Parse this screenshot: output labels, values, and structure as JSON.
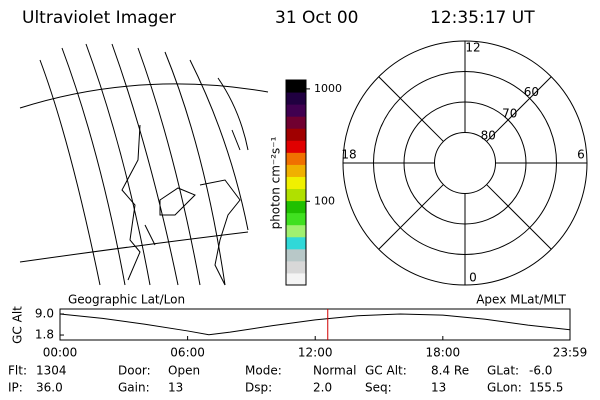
{
  "header": {
    "title": "Ultraviolet Imager",
    "date": "31 Oct 00",
    "time": "12:35:17 UT"
  },
  "colorbar": {
    "label": "photon cm⁻²s⁻¹",
    "log": true,
    "lim": [
      18,
      1200
    ],
    "ticks": [
      1000,
      100
    ],
    "colors": [
      "#f4f4f4",
      "#d8d8d8",
      "#b8c8c8",
      "#30d8d8",
      "#a0f070",
      "#40e020",
      "#20c000",
      "#b0e000",
      "#f0f000",
      "#f0b000",
      "#f07000",
      "#e00000",
      "#a00000",
      "#700030",
      "#400050",
      "#200040",
      "#000000"
    ]
  },
  "map": {
    "left_label": "Geographic Lat/Lon",
    "right_label": "Apex MLat/MLT"
  },
  "polar": {
    "lat_lim": [
      90,
      50
    ],
    "lat_rings": [
      80,
      70,
      60
    ],
    "mlt_labels": [
      12,
      6,
      18,
      0
    ]
  },
  "orbit": {
    "ylabel": "GC Alt",
    "ylim": [
      0.1,
      10.7
    ],
    "yticks": [
      {
        "value": 9.0,
        "label": "9.0"
      },
      {
        "value": 1.8,
        "label": "1.8"
      }
    ],
    "xlim": [
      0,
      23.98
    ],
    "xticks": [
      {
        "value": 0,
        "label": "00:00"
      },
      {
        "value": 6,
        "label": "06:00"
      },
      {
        "value": 12,
        "label": "12:00"
      },
      {
        "value": 18,
        "label": "18:00"
      },
      {
        "value": 23.98,
        "label": "23:59"
      }
    ],
    "x": [
      0,
      2,
      4,
      6,
      7,
      8,
      10,
      12,
      14,
      16,
      18,
      20,
      22,
      23.98
    ],
    "values": [
      9.0,
      7.5,
      5.5,
      3.2,
      1.9,
      2.8,
      5.0,
      7.0,
      8.4,
      9.0,
      8.6,
      7.2,
      5.2,
      3.6
    ],
    "current": 12.59,
    "current_color": "#d00000"
  },
  "info": [
    [
      {
        "label": "Flt:",
        "value": "1304"
      },
      {
        "label": "Door:",
        "value": "Open"
      },
      {
        "label": "Mode:",
        "value": "Normal"
      },
      {
        "label": "GC Alt:",
        "value": "8.4 Re"
      },
      {
        "label": "GLat:",
        "value": "-6.0"
      }
    ],
    [
      {
        "label": "IP:",
        "value": "36.0"
      },
      {
        "label": "Gain:",
        "value": "13"
      },
      {
        "label": "Dsp:",
        "value": "2.0"
      },
      {
        "label": "Seq:",
        "value": "13"
      },
      {
        "label": "GLon:",
        "value": "155.5"
      }
    ]
  ]
}
